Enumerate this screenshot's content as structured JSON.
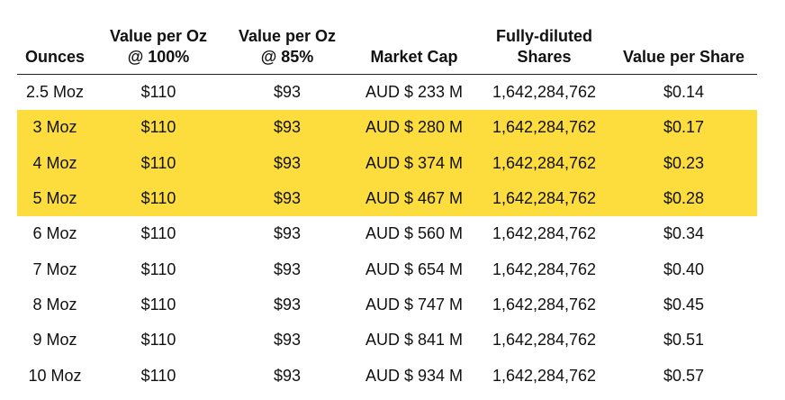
{
  "table": {
    "headers": [
      [
        "",
        "Ounces"
      ],
      [
        "Value per Oz",
        "@ 100%"
      ],
      [
        "Value per Oz",
        "@ 85%"
      ],
      [
        "",
        "Market Cap"
      ],
      [
        "Fully-diluted",
        "Shares"
      ],
      [
        "",
        "Value per Share"
      ]
    ],
    "highlight_color": "#fcdd3d",
    "rows": [
      {
        "highlight": false,
        "cells": [
          "2.5 Moz",
          "$110",
          "$93",
          "AUD $ 233 M",
          "1,642,284,762",
          "$0.14"
        ]
      },
      {
        "highlight": true,
        "cells": [
          "3 Moz",
          "$110",
          "$93",
          "AUD $ 280 M",
          "1,642,284,762",
          "$0.17"
        ]
      },
      {
        "highlight": true,
        "cells": [
          "4 Moz",
          "$110",
          "$93",
          "AUD $ 374 M",
          "1,642,284,762",
          "$0.23"
        ]
      },
      {
        "highlight": true,
        "cells": [
          "5 Moz",
          "$110",
          "$93",
          "AUD $ 467 M",
          "1,642,284,762",
          "$0.28"
        ]
      },
      {
        "highlight": false,
        "cells": [
          "6 Moz",
          "$110",
          "$93",
          "AUD $ 560 M",
          "1,642,284,762",
          "$0.34"
        ]
      },
      {
        "highlight": false,
        "cells": [
          "7 Moz",
          "$110",
          "$93",
          "AUD $ 654 M",
          "1,642,284,762",
          "$0.40"
        ]
      },
      {
        "highlight": false,
        "cells": [
          "8 Moz",
          "$110",
          "$93",
          "AUD $ 747 M",
          "1,642,284,762",
          "$0.45"
        ]
      },
      {
        "highlight": false,
        "cells": [
          "9 Moz",
          "$110",
          "$93",
          "AUD $ 841 M",
          "1,642,284,762",
          "$0.51"
        ]
      },
      {
        "highlight": false,
        "cells": [
          "10 Moz",
          "$110",
          "$93",
          "AUD $ 934 M",
          "1,642,284,762",
          "$0.57"
        ]
      }
    ]
  }
}
